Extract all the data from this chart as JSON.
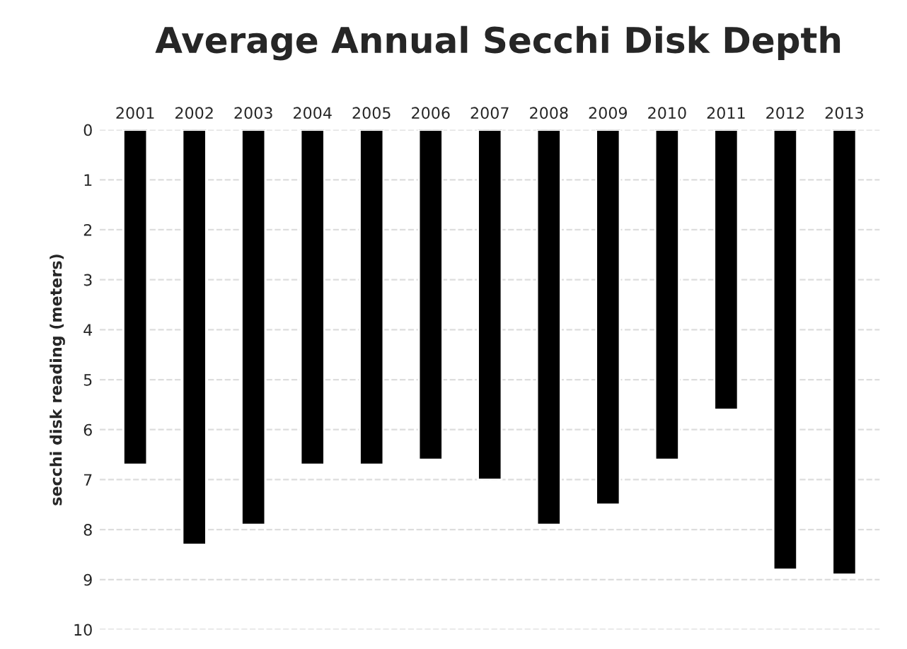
{
  "chart_data": {
    "type": "bar",
    "title": "Average Annual Secchi Disk Depth",
    "ylabel": "secchi disk reading (meters)",
    "categories": [
      "2001",
      "2002",
      "2003",
      "2004",
      "2005",
      "2006",
      "2007",
      "2008",
      "2009",
      "2010",
      "2011",
      "2012",
      "2013"
    ],
    "values": [
      6.7,
      8.3,
      7.9,
      6.7,
      6.7,
      6.6,
      7.0,
      7.9,
      7.5,
      6.6,
      5.6,
      8.8,
      8.9
    ],
    "color": "#000000",
    "ylim": [
      10,
      0
    ],
    "yticks": [
      0,
      1,
      2,
      3,
      4,
      5,
      6,
      7,
      8,
      9,
      10
    ],
    "grid": "y"
  }
}
